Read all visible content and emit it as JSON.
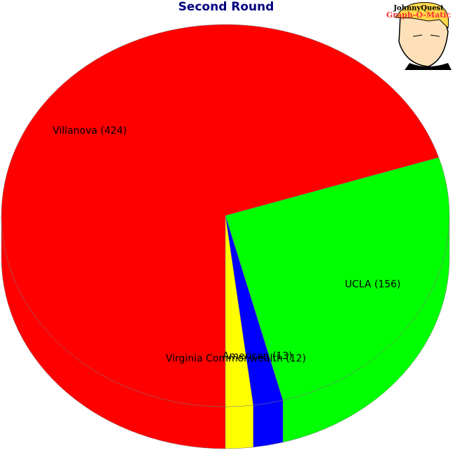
{
  "chart_data": {
    "type": "pie3d",
    "title": "Second Round",
    "values": [
      424,
      156,
      13,
      12
    ],
    "value_labels": [
      "Villanova (424)",
      "UCLA (156)",
      "American (13)",
      "Virginia Commonwealth (12)"
    ],
    "colors": [
      "#ff0000",
      "#00ff00",
      "#0000ff",
      "#ffff00"
    ]
  },
  "logo": {
    "line1": "JohnnyQuest",
    "line2": "Graph-O-Matic"
  }
}
